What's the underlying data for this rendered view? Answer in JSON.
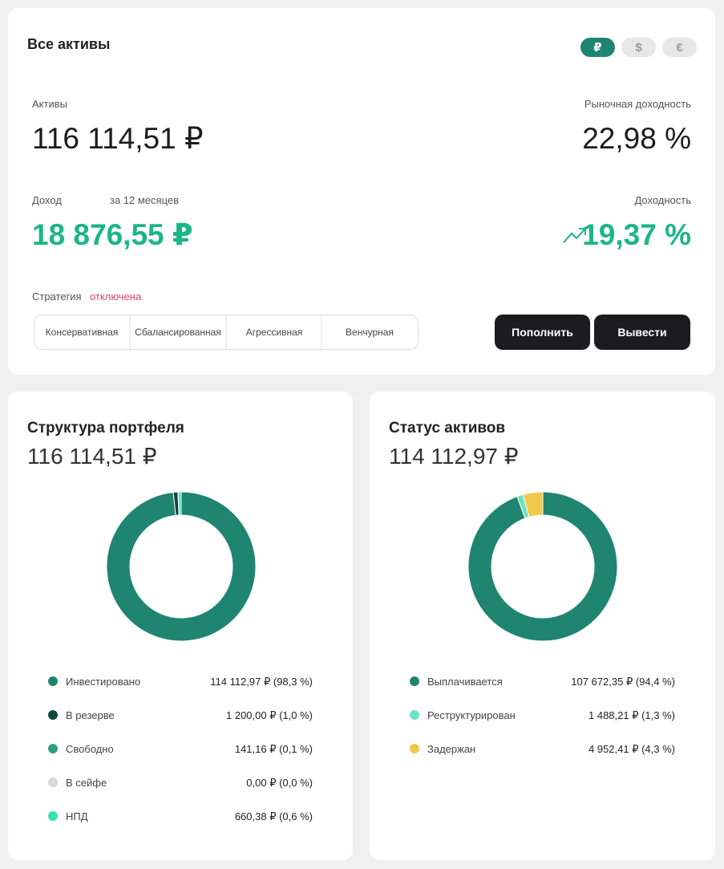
{
  "header": {
    "title": "Все активы",
    "currencies": [
      "₽",
      "$",
      "€"
    ]
  },
  "assets": {
    "label": "Активы",
    "value": "116 114,51 ₽"
  },
  "market_yield": {
    "label": "Рыночная доходность",
    "value": "22,98 %"
  },
  "income": {
    "label": "Доход",
    "period": "за 12 месяцев",
    "value": "18 876,55 ₽"
  },
  "yield": {
    "label": "Доходность",
    "value": "19,37 %"
  },
  "strategy": {
    "label": "Стратегия",
    "status": "отключена",
    "options": [
      "Консервативная",
      "Сбалансированная",
      "Агрессивная",
      "Венчурная"
    ]
  },
  "buttons": [
    "Пополнить",
    "Вывести"
  ],
  "chart_data": [
    {
      "type": "pie",
      "title": "Структура портфеля",
      "subtitle": "116 114,51 ₽",
      "categories": [
        "Инвестировано",
        "В резерве",
        "Свободно",
        "В сейфе",
        "НПД"
      ],
      "values": [
        98.3,
        1.0,
        0.1,
        0.0,
        0.6
      ],
      "value_labels": [
        "114 112,97 ₽ (98,3 %)",
        "1 200,00 ₽ (1,0 %)",
        "141,16 ₽ (0,1 %)",
        "0,00 ₽ (0,0 %)",
        "660,38 ₽ (0,6 %)"
      ],
      "colors": [
        "#1f8570",
        "#13463b",
        "#2ea183",
        "#d9d9d9",
        "#37e0b5"
      ]
    },
    {
      "type": "pie",
      "title": "Статус активов",
      "subtitle": "114 112,97 ₽",
      "categories": [
        "Выплачивается",
        "Реструктурирован",
        "Задержан"
      ],
      "values": [
        94.4,
        1.3,
        4.3
      ],
      "value_labels": [
        "107 672,35 ₽ (94,4 %)",
        "1 488,21 ₽ (1,3 %)",
        "4 952,41 ₽ (4,3 %)"
      ],
      "colors": [
        "#1f8570",
        "#6fe0c4",
        "#f2c94c"
      ]
    }
  ]
}
